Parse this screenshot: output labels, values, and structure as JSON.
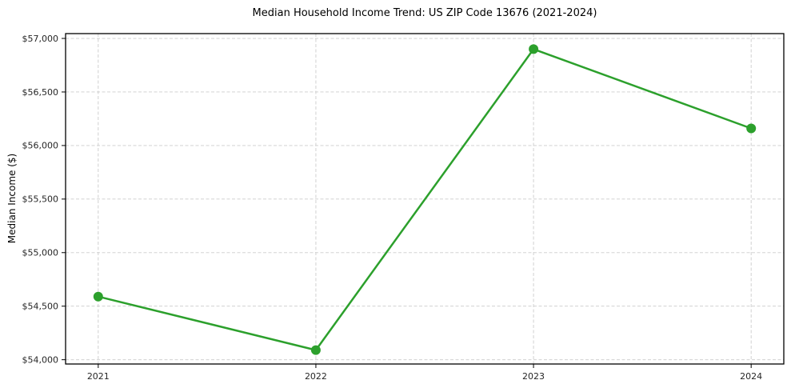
{
  "chart_data": {
    "type": "line",
    "title": "Median Household Income Trend: US ZIP Code 13676 (2021-2024)",
    "xlabel": "",
    "ylabel": "Median Income ($)",
    "x": [
      2021,
      2022,
      2023,
      2024
    ],
    "values": [
      54590,
      54090,
      56900,
      56160
    ],
    "xticks": [
      2021,
      2022,
      2023,
      2024
    ],
    "xtick_labels": [
      "2021",
      "2022",
      "2023",
      "2024"
    ],
    "yticks": [
      54000,
      54500,
      55000,
      55500,
      56000,
      56500,
      57000
    ],
    "ytick_labels": [
      "$54,000",
      "$54,500",
      "$55,000",
      "$55,500",
      "$56,000",
      "$56,500",
      "$57,000"
    ],
    "xlim": [
      2020.85,
      2024.15
    ],
    "ylim": [
      53960,
      57045
    ],
    "grid": true,
    "grid_style": "dashed",
    "legend_position": "none",
    "line_color": "#2ca02c",
    "marker": "circle",
    "grid_color": "#cccccc",
    "axis_color": "#000000",
    "tick_text_color": "#262626",
    "background_color": "#ffffff"
  }
}
